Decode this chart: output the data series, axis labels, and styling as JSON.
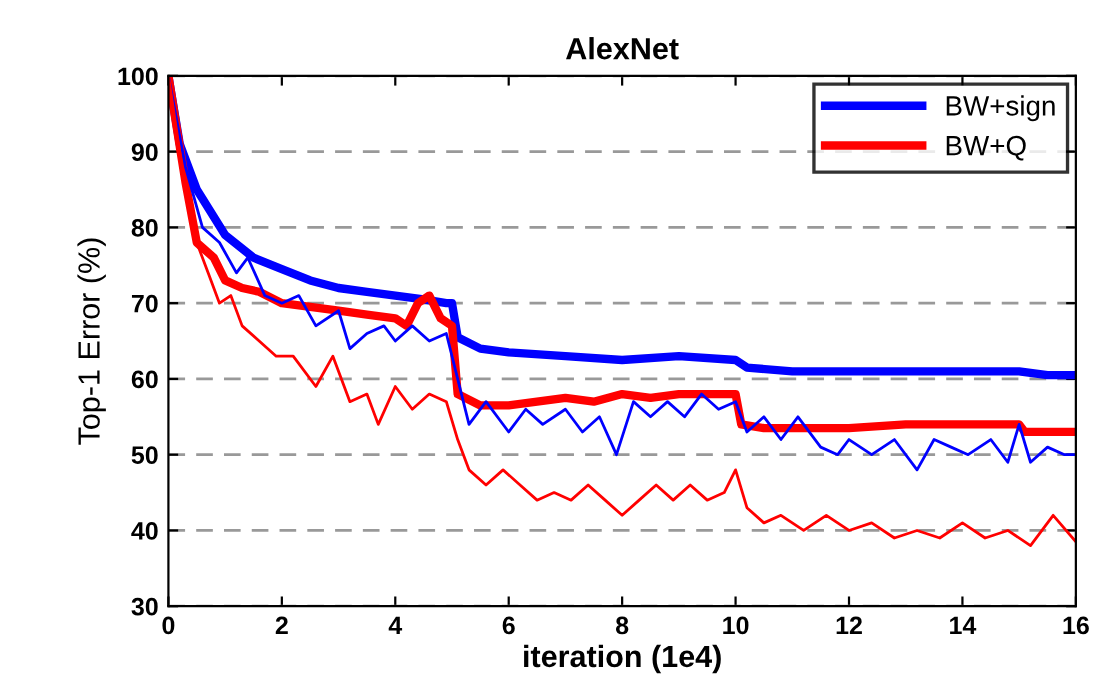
{
  "chart_data": {
    "type": "line",
    "title": "AlexNet",
    "xlabel": "iteration (1e4)",
    "ylabel": "Top-1 Error (%)",
    "xlim": [
      0,
      16
    ],
    "ylim": [
      30,
      100
    ],
    "xticks": [
      0,
      2,
      4,
      6,
      8,
      10,
      12,
      14,
      16
    ],
    "yticks": [
      30,
      40,
      50,
      60,
      70,
      80,
      90,
      100
    ],
    "grid": "y",
    "legend": "top right",
    "line_style": "solid",
    "marker": "none",
    "series": [
      {
        "name": "BW+sign",
        "color": "#0000ff",
        "x": [
          0,
          0.2,
          0.5,
          1,
          1.5,
          2,
          2.5,
          3,
          3.5,
          4,
          4.5,
          4.9,
          5.0,
          5.1,
          5.5,
          6,
          7,
          8,
          9,
          10,
          10.2,
          11,
          12,
          13,
          14,
          15,
          15.5,
          16
        ],
        "values": [
          100,
          91,
          85,
          79,
          76,
          74.5,
          73,
          72,
          71.5,
          71,
          70.5,
          70,
          70,
          65.5,
          64,
          63.5,
          63,
          62.5,
          63,
          62.5,
          61.5,
          61,
          61,
          61,
          61,
          61,
          60.5,
          60.5
        ]
      },
      {
        "name": "BW+Q",
        "color": "#ff0000",
        "x": [
          0,
          0.3,
          0.5,
          0.8,
          1,
          1.3,
          1.6,
          2,
          2.5,
          3,
          3.5,
          4,
          4.2,
          4.4,
          4.6,
          4.8,
          5.0,
          5.1,
          5.5,
          6,
          6.5,
          7,
          7.5,
          8,
          8.5,
          9,
          9.5,
          10,
          10.1,
          10.5,
          11,
          12,
          13,
          14,
          14.5,
          15,
          15.1,
          16
        ],
        "values": [
          100,
          86,
          78,
          76,
          73,
          72,
          71.5,
          70,
          69.5,
          69,
          68.5,
          68,
          67,
          70,
          71,
          68,
          67,
          58,
          56.5,
          56.5,
          57,
          57.5,
          57,
          58,
          57.5,
          58,
          58,
          58,
          54,
          53.5,
          53.5,
          53.5,
          54,
          54,
          54,
          54,
          53,
          53
        ]
      },
      {
        "color": "#0000ff",
        "x": [
          0,
          0.3,
          0.6,
          0.9,
          1.2,
          1.4,
          1.7,
          2,
          2.3,
          2.6,
          3,
          3.2,
          3.5,
          3.8,
          4,
          4.3,
          4.6,
          4.9,
          5.1,
          5.3,
          5.6,
          6,
          6.3,
          6.6,
          7,
          7.3,
          7.6,
          7.9,
          8.2,
          8.5,
          8.8,
          9.1,
          9.4,
          9.7,
          10,
          10.2,
          10.5,
          10.8,
          11.1,
          11.5,
          11.8,
          12,
          12.4,
          12.8,
          13.2,
          13.5,
          13.8,
          14.1,
          14.5,
          14.8,
          15,
          15.2,
          15.5,
          15.8,
          16
        ],
        "values": [
          100,
          88,
          80,
          78,
          74,
          76,
          71,
          70,
          71,
          67,
          69,
          64,
          66,
          67,
          65,
          67,
          65,
          66,
          60,
          54,
          57,
          53,
          56,
          54,
          56,
          53,
          55,
          50,
          57,
          55,
          57,
          55,
          58,
          56,
          57,
          53,
          55,
          52,
          55,
          51,
          50,
          52,
          50,
          52,
          48,
          52,
          51,
          50,
          52,
          49,
          54,
          49,
          51,
          50,
          50
        ]
      },
      {
        "color": "#ff0000",
        "x": [
          0,
          0.3,
          0.5,
          0.7,
          0.9,
          1.1,
          1.3,
          1.6,
          1.9,
          2.2,
          2.6,
          2.9,
          3.2,
          3.5,
          3.7,
          4,
          4.3,
          4.6,
          4.9,
          5.1,
          5.3,
          5.6,
          5.9,
          6.2,
          6.5,
          6.8,
          7.1,
          7.4,
          7.7,
          8,
          8.3,
          8.6,
          8.9,
          9.2,
          9.5,
          9.8,
          10,
          10.2,
          10.5,
          10.8,
          11.2,
          11.6,
          12,
          12.4,
          12.8,
          13.2,
          13.6,
          14,
          14.4,
          14.8,
          15.2,
          15.6,
          16
        ],
        "values": [
          100,
          85,
          78,
          74,
          70,
          71,
          67,
          65,
          63,
          63,
          59,
          63,
          57,
          58,
          54,
          59,
          56,
          58,
          57,
          52,
          48,
          46,
          48,
          46,
          44,
          45,
          44,
          46,
          44,
          42,
          44,
          46,
          44,
          46,
          44,
          45,
          48,
          43,
          41,
          42,
          40,
          42,
          40,
          41,
          39,
          40,
          39,
          41,
          39,
          40,
          38,
          42,
          38.5
        ]
      }
    ]
  }
}
